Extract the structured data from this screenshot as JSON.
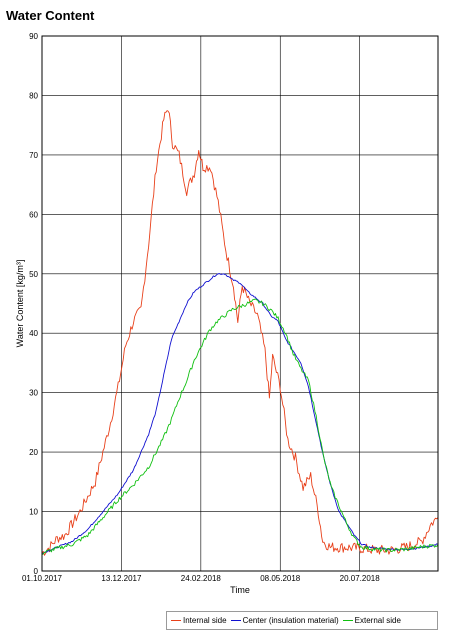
{
  "chart_data": {
    "type": "line",
    "title": "Water Content",
    "xlabel": "Time",
    "ylabel": "Water Content [kg/m³]",
    "xlim": [
      "2017-10-01",
      "2018-09-30"
    ],
    "ylim": [
      0,
      90
    ],
    "x_ticks": [
      "01.10.2017",
      "13.12.2017",
      "24.02.2018",
      "08.05.2018",
      "20.07.2018"
    ],
    "y_ticks": [
      0,
      10,
      20,
      30,
      40,
      50,
      60,
      70,
      80,
      90
    ],
    "grid": true,
    "legend_position": "bottom-right",
    "series": [
      {
        "name": "Internal side",
        "color": "#e8401a",
        "points": [
          [
            "2017-10-01",
            3
          ],
          [
            "2017-10-08",
            4
          ],
          [
            "2017-10-15",
            5.5
          ],
          [
            "2017-10-22",
            6
          ],
          [
            "2017-10-29",
            8
          ],
          [
            "2017-11-05",
            10
          ],
          [
            "2017-11-12",
            12.5
          ],
          [
            "2017-11-19",
            15
          ],
          [
            "2017-11-26",
            20
          ],
          [
            "2017-12-03",
            25
          ],
          [
            "2017-12-10",
            31
          ],
          [
            "2017-12-17",
            38
          ],
          [
            "2017-12-24",
            42
          ],
          [
            "2017-12-31",
            44
          ],
          [
            "2018-01-07",
            55
          ],
          [
            "2018-01-14",
            68
          ],
          [
            "2018-01-21",
            76
          ],
          [
            "2018-01-25",
            78
          ],
          [
            "2018-01-29",
            72
          ],
          [
            "2018-02-04",
            70
          ],
          [
            "2018-02-11",
            64
          ],
          [
            "2018-02-18",
            67
          ],
          [
            "2018-02-22",
            71
          ],
          [
            "2018-02-26",
            68
          ],
          [
            "2018-03-05",
            68
          ],
          [
            "2018-03-12",
            62
          ],
          [
            "2018-03-19",
            54
          ],
          [
            "2018-03-26",
            48
          ],
          [
            "2018-03-30",
            42
          ],
          [
            "2018-04-03",
            48
          ],
          [
            "2018-04-10",
            45
          ],
          [
            "2018-04-17",
            43
          ],
          [
            "2018-04-24",
            37
          ],
          [
            "2018-04-28",
            29
          ],
          [
            "2018-05-01",
            36
          ],
          [
            "2018-05-08",
            31
          ],
          [
            "2018-05-15",
            22
          ],
          [
            "2018-05-22",
            19
          ],
          [
            "2018-05-29",
            14
          ],
          [
            "2018-06-05",
            16
          ],
          [
            "2018-06-12",
            10
          ],
          [
            "2018-06-16",
            5
          ],
          [
            "2018-06-23",
            4
          ],
          [
            "2018-07-07",
            4
          ],
          [
            "2018-07-21",
            3.8
          ],
          [
            "2018-08-04",
            3.5
          ],
          [
            "2018-08-18",
            3.5
          ],
          [
            "2018-09-01",
            4
          ],
          [
            "2018-09-15",
            5
          ],
          [
            "2018-09-24",
            8
          ],
          [
            "2018-09-30",
            9
          ]
        ]
      },
      {
        "name": "Center (insulation material)",
        "color": "#1010d0",
        "points": [
          [
            "2017-10-01",
            3
          ],
          [
            "2017-10-15",
            4
          ],
          [
            "2017-10-29",
            5
          ],
          [
            "2017-11-12",
            7
          ],
          [
            "2017-11-26",
            10
          ],
          [
            "2017-12-10",
            13
          ],
          [
            "2017-12-24",
            17
          ],
          [
            "2018-01-07",
            23
          ],
          [
            "2018-01-14",
            27
          ],
          [
            "2018-01-21",
            33
          ],
          [
            "2018-01-28",
            39
          ],
          [
            "2018-02-04",
            42
          ],
          [
            "2018-02-11",
            45
          ],
          [
            "2018-02-18",
            47
          ],
          [
            "2018-02-25",
            48
          ],
          [
            "2018-03-04",
            49
          ],
          [
            "2018-03-11",
            50
          ],
          [
            "2018-03-18",
            50
          ],
          [
            "2018-03-25",
            49
          ],
          [
            "2018-04-01",
            48.5
          ],
          [
            "2018-04-08",
            47
          ],
          [
            "2018-04-15",
            46
          ],
          [
            "2018-04-22",
            45
          ],
          [
            "2018-04-29",
            43
          ],
          [
            "2018-05-06",
            42
          ],
          [
            "2018-05-13",
            39
          ],
          [
            "2018-05-20",
            37
          ],
          [
            "2018-05-27",
            35
          ],
          [
            "2018-06-03",
            31
          ],
          [
            "2018-06-10",
            25
          ],
          [
            "2018-06-17",
            19
          ],
          [
            "2018-06-24",
            14
          ],
          [
            "2018-07-01",
            10
          ],
          [
            "2018-07-08",
            8
          ],
          [
            "2018-07-15",
            6
          ],
          [
            "2018-07-22",
            4.5
          ],
          [
            "2018-07-29",
            4
          ],
          [
            "2018-08-12",
            3.7
          ],
          [
            "2018-08-26",
            3.6
          ],
          [
            "2018-09-09",
            3.8
          ],
          [
            "2018-09-23",
            4.2
          ],
          [
            "2018-09-30",
            4.5
          ]
        ]
      },
      {
        "name": "External side",
        "color": "#10c010",
        "points": [
          [
            "2017-10-01",
            3
          ],
          [
            "2017-10-15",
            3.8
          ],
          [
            "2017-10-29",
            4.5
          ],
          [
            "2017-11-12",
            6
          ],
          [
            "2017-11-26",
            9
          ],
          [
            "2017-12-10",
            12
          ],
          [
            "2017-12-24",
            14.5
          ],
          [
            "2018-01-07",
            17.5
          ],
          [
            "2018-01-14",
            20
          ],
          [
            "2018-01-21",
            22.5
          ],
          [
            "2018-01-28",
            25.5
          ],
          [
            "2018-02-04",
            29
          ],
          [
            "2018-02-11",
            32
          ],
          [
            "2018-02-18",
            35.5
          ],
          [
            "2018-02-25",
            38
          ],
          [
            "2018-03-04",
            40.5
          ],
          [
            "2018-03-11",
            42
          ],
          [
            "2018-03-18",
            43
          ],
          [
            "2018-03-25",
            44
          ],
          [
            "2018-04-01",
            44.5
          ],
          [
            "2018-04-08",
            45
          ],
          [
            "2018-04-15",
            45.5
          ],
          [
            "2018-04-22",
            45
          ],
          [
            "2018-04-29",
            44
          ],
          [
            "2018-05-06",
            42.5
          ],
          [
            "2018-05-13",
            40
          ],
          [
            "2018-05-20",
            36.5
          ],
          [
            "2018-05-27",
            34
          ],
          [
            "2018-06-03",
            32
          ],
          [
            "2018-06-10",
            26
          ],
          [
            "2018-06-17",
            19
          ],
          [
            "2018-06-24",
            14
          ],
          [
            "2018-07-01",
            11
          ],
          [
            "2018-07-08",
            8
          ],
          [
            "2018-07-15",
            5.5
          ],
          [
            "2018-07-22",
            4
          ],
          [
            "2018-08-05",
            3.6
          ],
          [
            "2018-08-19",
            3.5
          ],
          [
            "2018-09-02",
            3.7
          ],
          [
            "2018-09-16",
            4.1
          ],
          [
            "2018-09-30",
            4.4
          ]
        ]
      }
    ]
  }
}
